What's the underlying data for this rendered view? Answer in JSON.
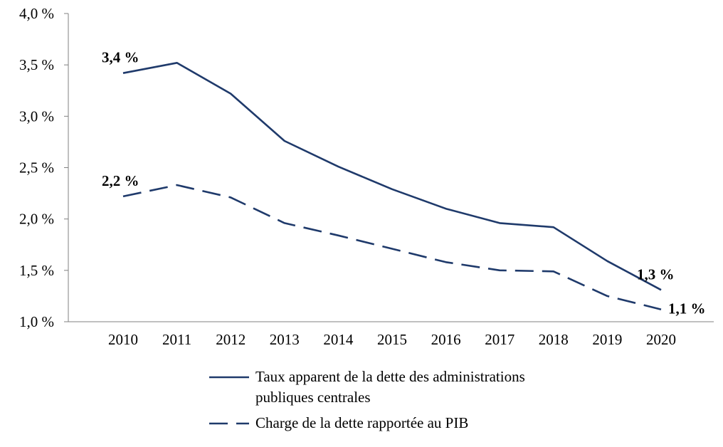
{
  "chart_data": {
    "type": "line",
    "title": "",
    "xlabel": "",
    "ylabel": "",
    "ylim": [
      1.0,
      4.0
    ],
    "y_ticks": [
      "1,0 %",
      "1,5 %",
      "2,0 %",
      "2,5 %",
      "3,0 %",
      "3,5 %",
      "4,0 %"
    ],
    "x": [
      "2010",
      "2011",
      "2012",
      "2013",
      "2014",
      "2015",
      "2016",
      "2017",
      "2018",
      "2019",
      "2020"
    ],
    "grid": false,
    "legend_position": "bottom",
    "series": [
      {
        "name": "Taux apparent de la dette des administrations publiques centrales",
        "name_lines": [
          "Taux apparent de la dette des administrations",
          "publiques centrales"
        ],
        "style": "solid",
        "color": "#1f3a6b",
        "values": [
          3.42,
          3.52,
          3.22,
          2.76,
          2.51,
          2.29,
          2.1,
          1.96,
          1.92,
          1.59,
          1.31
        ],
        "annotations": [
          {
            "x": "2010",
            "text": "3,4 %"
          },
          {
            "x": "2020",
            "text": "1,3 %"
          }
        ]
      },
      {
        "name": "Charge de la dette rapportée au PIB",
        "name_lines": [
          "Charge de la dette rapportée au PIB"
        ],
        "style": "dashed",
        "color": "#1f3a6b",
        "values": [
          2.22,
          2.33,
          2.21,
          1.96,
          1.84,
          1.71,
          1.58,
          1.5,
          1.49,
          1.25,
          1.12
        ],
        "annotations": [
          {
            "x": "2010",
            "text": "2,2 %"
          },
          {
            "x": "2020",
            "text": "1,1 %"
          }
        ]
      }
    ]
  }
}
